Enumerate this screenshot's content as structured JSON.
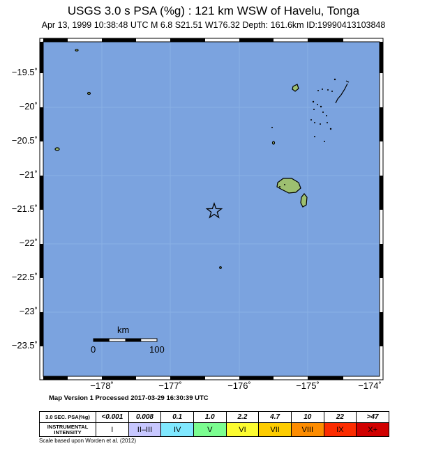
{
  "header": {
    "title": "USGS 3.0 s PSA (%g) : 121 km WSW of Havelu, Tonga",
    "subtitle": "Apr 13, 1999 10:38:48 UTC   M 6.8   S21.51 W176.32   Depth: 161.6km   ID:19990413103848"
  },
  "map": {
    "lat_labels": [
      "−19.5˚",
      "−20˚",
      "−20.5˚",
      "−21˚",
      "−21.5˚",
      "−22˚",
      "−22.5˚",
      "−23˚",
      "−23.5˚"
    ],
    "lon_labels": [
      "−178˚",
      "−177˚",
      "−176˚",
      "−175˚",
      "−174˚"
    ],
    "scale_bar": {
      "unit": "km",
      "start": "0",
      "end": "100"
    },
    "epicenter": {
      "lat": -21.51,
      "lon": -176.32
    },
    "ocean_color": "#7ba3df",
    "land_color": "#9dbf70"
  },
  "footer": {
    "processed": "Map Version 1 Processed 2017-03-29 16:30:39 UTC"
  },
  "legend": {
    "psa_header": "3.0 SEC. PSA(%g)",
    "intensity_header": "INSTRUMENTAL INTENSITY",
    "columns": [
      {
        "psa": "<0.001",
        "intensity": "I",
        "color": "#ffffff"
      },
      {
        "psa": "0.008",
        "intensity": "II–III",
        "color": "#c8c8ff"
      },
      {
        "psa": "0.1",
        "intensity": "IV",
        "color": "#80e8ff"
      },
      {
        "psa": "1.0",
        "intensity": "V",
        "color": "#7bfd90"
      },
      {
        "psa": "2.2",
        "intensity": "VI",
        "color": "#fcfc30"
      },
      {
        "psa": "4.7",
        "intensity": "VII",
        "color": "#fdcc00"
      },
      {
        "psa": "10",
        "intensity": "VIII",
        "color": "#fd8c00"
      },
      {
        "psa": "22",
        "intensity": "IX",
        "color": "#fc2c00"
      },
      {
        "psa": ">47",
        "intensity": "X+",
        "color": "#d00000"
      }
    ],
    "credit": "Scale based upon Worden et al. (2012)"
  }
}
